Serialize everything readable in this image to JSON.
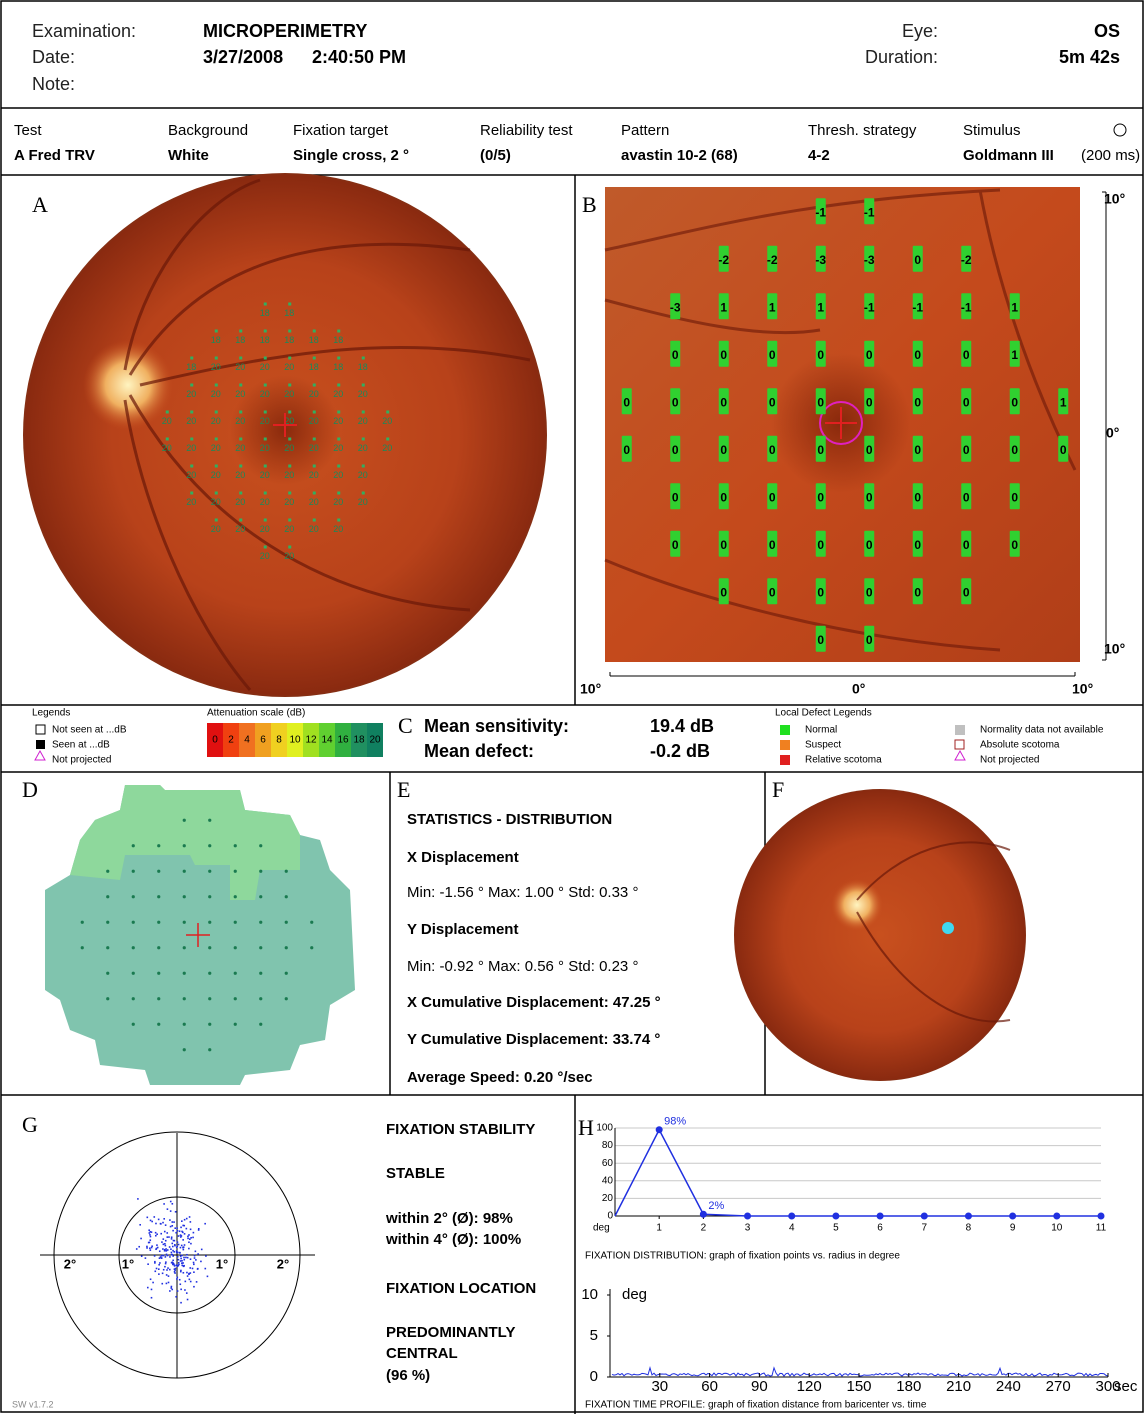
{
  "header": {
    "examination_label": "Examination:",
    "examination": "MICROPERIMETRY",
    "date_label": "Date:",
    "date": "3/27/2008",
    "time": "2:40:50 PM",
    "note_label": "Note:",
    "eye_label": "Eye:",
    "eye": "OS",
    "duration_label": "Duration:",
    "duration": "5m 42s"
  },
  "test_info": [
    {
      "label": "Test",
      "value": "A Fred TRV"
    },
    {
      "label": "Background",
      "value": "White"
    },
    {
      "label": "Fixation target",
      "value": "Single cross, 2 °"
    },
    {
      "label": "Reliability test",
      "value": "(0/5)"
    },
    {
      "label": "Pattern",
      "value": "avastin 10-2 (68)"
    },
    {
      "label": "Thresh. strategy",
      "value": "4-2"
    },
    {
      "label": "Stimulus",
      "value": "Goldmann III",
      "extra": "(200 ms)"
    }
  ],
  "panel_letters": [
    "A",
    "B",
    "C",
    "D",
    "E",
    "F",
    "G",
    "H"
  ],
  "panel_a": {
    "rows": [
      [
        18,
        18
      ],
      [
        18,
        18,
        18,
        18,
        18,
        18
      ],
      [
        18,
        20,
        20,
        20,
        20,
        18,
        18,
        18
      ],
      [
        20,
        20,
        20,
        20,
        20,
        20,
        20,
        20
      ],
      [
        20,
        20,
        20,
        20,
        20,
        20,
        20,
        20,
        20,
        20
      ],
      [
        20,
        20,
        20,
        20,
        20,
        20,
        20,
        20,
        20,
        20
      ],
      [
        20,
        20,
        20,
        20,
        20,
        20,
        20,
        20
      ],
      [
        20,
        20,
        20,
        20,
        20,
        20,
        20,
        20
      ],
      [
        20,
        20,
        20,
        20,
        20,
        20
      ],
      [
        20,
        20
      ]
    ]
  },
  "panel_b": {
    "rows": [
      [
        -1,
        -1
      ],
      [
        -2,
        -2,
        -3,
        -3,
        0,
        -2
      ],
      [
        -3,
        1,
        1,
        1,
        -1,
        -1,
        -1,
        1
      ],
      [
        0,
        0,
        0,
        0,
        0,
        0,
        0,
        1
      ],
      [
        0,
        0,
        0,
        0,
        0,
        0,
        0,
        0,
        0,
        1
      ],
      [
        0,
        0,
        0,
        0,
        0,
        0,
        0,
        0,
        0,
        0
      ],
      [
        0,
        0,
        0,
        0,
        0,
        0,
        0,
        0
      ],
      [
        0,
        0,
        0,
        0,
        0,
        0,
        0,
        0
      ],
      [
        0,
        0,
        0,
        0,
        0,
        0
      ],
      [
        0,
        0
      ]
    ],
    "axis_labels": {
      "top": "10°",
      "middle": "0°",
      "bottom": "10°",
      "left": "10°",
      "center": "0°",
      "right": "10°"
    }
  },
  "legends": {
    "title": "Legends",
    "items": [
      "Not seen at ...dB",
      "Seen at ...dB",
      "Not projected"
    ],
    "scale_title": "Attenuation scale (dB)",
    "scale_ticks": [
      0,
      2,
      4,
      6,
      8,
      10,
      12,
      14,
      16,
      18,
      20
    ]
  },
  "summary": {
    "mean_sensitivity_label": "Mean sensitivity:",
    "mean_sensitivity": "19.4 dB",
    "mean_defect_label": "Mean defect:",
    "mean_defect": "-0.2 dB"
  },
  "local_defect": {
    "title": "Local Defect Legends",
    "items": [
      "Normal",
      "Suspect",
      "Relative scotoma",
      "Normality data not available",
      "Absolute scotoma",
      "Not projected"
    ]
  },
  "statistics": [
    {
      "text": "STATISTICS - DISTRIBUTION",
      "bold": true
    },
    {
      "text": "X Displacement",
      "bold": true
    },
    {
      "text": "Min: -1.56 °   Max: 1.00 °   Std: 0.33 °",
      "bold": false
    },
    {
      "text": "Y Displacement",
      "bold": true
    },
    {
      "text": "Min: -0.92 °   Max: 0.56 °   Std: 0.23 °",
      "bold": false
    },
    {
      "text": "X Cumulative Displacement:  47.25 °",
      "bold": true
    },
    {
      "text": "Y Cumulative Displacement:  33.74 °",
      "bold": true
    },
    {
      "text": "Average Speed:  0.20 °/sec",
      "bold": true
    }
  ],
  "fixation_labels": [
    "2°",
    "1°",
    "1°",
    "2°"
  ],
  "fixation_text": [
    "FIXATION STABILITY",
    "STABLE",
    "within 2° (Ø): 98%",
    "within 4° (Ø): 100%",
    "FIXATION LOCATION",
    "PREDOMINANTLY",
    "CENTRAL",
    "(96 %)"
  ],
  "fixation_distribution": {
    "x": [
      0,
      1,
      2,
      3,
      4,
      5,
      6,
      7,
      8,
      9,
      10,
      11
    ],
    "values": [
      0,
      98,
      2,
      0,
      0,
      0,
      0,
      0,
      0,
      0,
      0,
      0
    ],
    "value_labels": [
      null,
      "98%",
      "2%",
      null,
      null,
      null,
      null,
      null,
      null,
      null,
      null,
      null
    ],
    "xlim": [
      0,
      11
    ],
    "xticks": [
      1,
      2,
      3,
      4,
      5,
      6,
      7,
      8,
      9,
      10,
      11
    ],
    "x_unit": "deg",
    "ylim": [
      0,
      100
    ],
    "yticks": [
      0,
      20,
      40,
      60,
      80,
      100
    ],
    "caption": "FIXATION DISTRIBUTION: graph of fixation points vs. radius in degree"
  },
  "time_profile": {
    "xlim": [
      0,
      300
    ],
    "xticks": [
      30,
      60,
      90,
      120,
      150,
      180,
      210,
      240,
      270,
      300
    ],
    "x_unit": "sec",
    "ylim": [
      0,
      10
    ],
    "yticks": [
      0,
      5,
      10
    ],
    "y_unit": "deg",
    "caption": "FIXATION TIME PROFILE: graph of fixation distance from baricenter vs. time"
  },
  "software": "SW v1.7.2"
}
